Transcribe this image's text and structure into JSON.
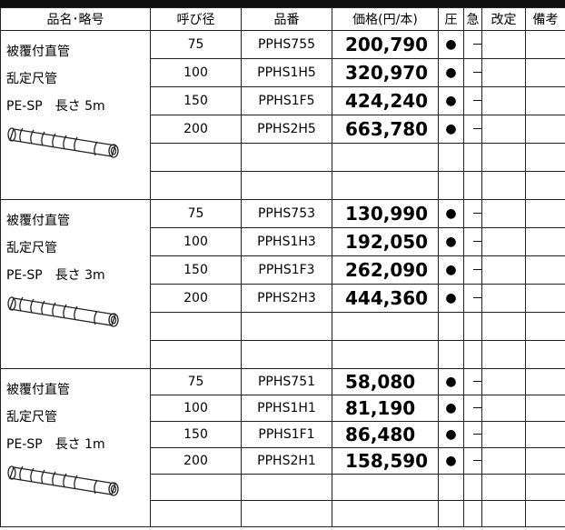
{
  "header": [
    "品名･略号",
    "呼び径",
    "品番",
    "価格(円/本)",
    "圧",
    "急",
    "改定",
    "備考"
  ],
  "groups": [
    {
      "name": [
        "被覆付直管",
        "乱定尺管",
        "PE-SP　長さ 5m"
      ],
      "rows": [
        [
          "75",
          "PPHS755",
          "200,790",
          "●",
          "－"
        ],
        [
          "100",
          "PPHS1H5",
          "320,970",
          "●",
          "－"
        ],
        [
          "150",
          "PPHS1F5",
          "424,240",
          "●",
          "－"
        ],
        [
          "200",
          "PPHS2H5",
          "663,780",
          "●",
          "－"
        ]
      ]
    },
    {
      "name": [
        "被覆付直管",
        "乱定尺管",
        "PE-SP　長さ 3m"
      ],
      "rows": [
        [
          "75",
          "PPHS753",
          "130,990",
          "●",
          "－"
        ],
        [
          "100",
          "PPHS1H3",
          "192,050",
          "●",
          "－"
        ],
        [
          "150",
          "PPHS1F3",
          "262,090",
          "●",
          "－"
        ],
        [
          "200",
          "PPHS2H3",
          "444,360",
          "●",
          "－"
        ]
      ]
    },
    {
      "name": [
        "被覆付直管",
        "乱定尺管",
        "PE-SP　長さ 1m"
      ],
      "rows": [
        [
          "75",
          "PPHS751",
          "58,080",
          "●",
          "－"
        ],
        [
          "100",
          "PPHS1H1",
          "81,190",
          "●",
          "－"
        ],
        [
          "150",
          "PPHS1F1",
          "86,480",
          "●",
          "－"
        ],
        [
          "200",
          "PPHS2H1",
          "158,590",
          "●",
          "－"
        ]
      ]
    }
  ]
}
